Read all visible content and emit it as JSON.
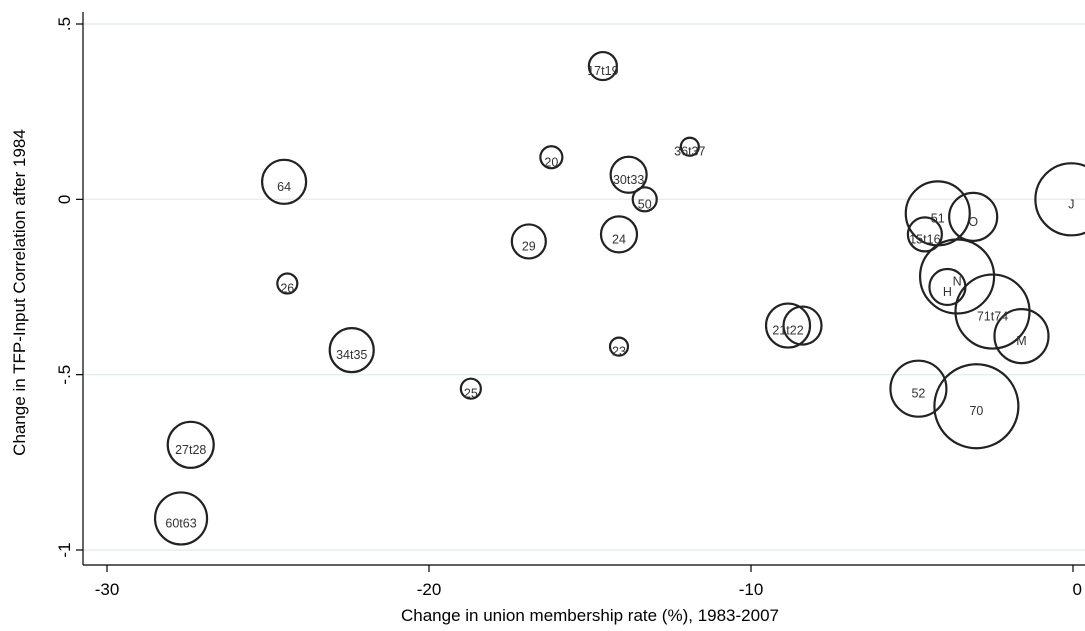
{
  "chart_data": {
    "type": "scatter",
    "xlabel": "Change in union membership rate (%), 1983-2007",
    "ylabel": "Change in TFP-Input Correlation after 1984",
    "xlim": [
      -30,
      0
    ],
    "ylim": [
      -1,
      0.5
    ],
    "x_ticks": [
      {
        "value": -30,
        "label": "-30"
      },
      {
        "value": -20,
        "label": "-20"
      },
      {
        "value": -10,
        "label": "-10"
      },
      {
        "value": 0,
        "label": "0"
      }
    ],
    "y_ticks": [
      {
        "value": -1,
        "label": "-1"
      },
      {
        "value": -0.5,
        "label": "-.5"
      },
      {
        "value": 0,
        "label": "0"
      },
      {
        "value": 0.5,
        "label": ".5"
      }
    ],
    "grid": true,
    "legend": "none",
    "marker": "hollow circle, size proportional to weight",
    "colors": {
      "marker": "#222222",
      "grid": "#e6eeee",
      "axis": "#000000",
      "label": "#333333"
    },
    "points": [
      {
        "label": "17t19",
        "x": -14.6,
        "y": 0.38,
        "size": 14
      },
      {
        "label": "20",
        "x": -16.2,
        "y": 0.12,
        "size": 11
      },
      {
        "label": "36t37",
        "x": -11.9,
        "y": 0.15,
        "size": 9
      },
      {
        "label": "64",
        "x": -24.5,
        "y": 0.05,
        "size": 22
      },
      {
        "label": "30t33",
        "x": -13.8,
        "y": 0.07,
        "size": 18
      },
      {
        "label": "50",
        "x": -13.3,
        "y": 0.0,
        "size": 12
      },
      {
        "label": "29",
        "x": -16.9,
        "y": -0.12,
        "size": 17
      },
      {
        "label": "24",
        "x": -14.1,
        "y": -0.1,
        "size": 18
      },
      {
        "label": "26",
        "x": -24.4,
        "y": -0.24,
        "size": 10
      },
      {
        "label": "34t35",
        "x": -22.4,
        "y": -0.43,
        "size": 22
      },
      {
        "label": "25",
        "x": -18.7,
        "y": -0.54,
        "size": 10
      },
      {
        "label": "23",
        "x": -14.1,
        "y": -0.42,
        "size": 9
      },
      {
        "label": "21t22",
        "x": -8.85,
        "y": -0.36,
        "size": 22
      },
      {
        "label": "",
        "x": -8.4,
        "y": -0.36,
        "size": 19
      },
      {
        "label": "27t28",
        "x": -27.4,
        "y": -0.7,
        "size": 23
      },
      {
        "label": "60t63",
        "x": -27.7,
        "y": -0.91,
        "size": 26
      },
      {
        "label": "J",
        "x": -0.05,
        "y": 0.0,
        "size": 36
      },
      {
        "label": "51",
        "x": -4.2,
        "y": -0.04,
        "size": 32
      },
      {
        "label": "O",
        "x": -3.1,
        "y": -0.05,
        "size": 24
      },
      {
        "label": "15t16",
        "x": -4.6,
        "y": -0.1,
        "size": 17
      },
      {
        "label": "N",
        "x": -3.6,
        "y": -0.22,
        "size": 37
      },
      {
        "label": "H",
        "x": -3.9,
        "y": -0.25,
        "size": 18
      },
      {
        "label": "71t74",
        "x": -2.5,
        "y": -0.32,
        "size": 37
      },
      {
        "label": "M",
        "x": -1.6,
        "y": -0.39,
        "size": 27
      },
      {
        "label": "52",
        "x": -4.8,
        "y": -0.54,
        "size": 28
      },
      {
        "label": "70",
        "x": -3.0,
        "y": -0.59,
        "size": 42
      }
    ]
  }
}
